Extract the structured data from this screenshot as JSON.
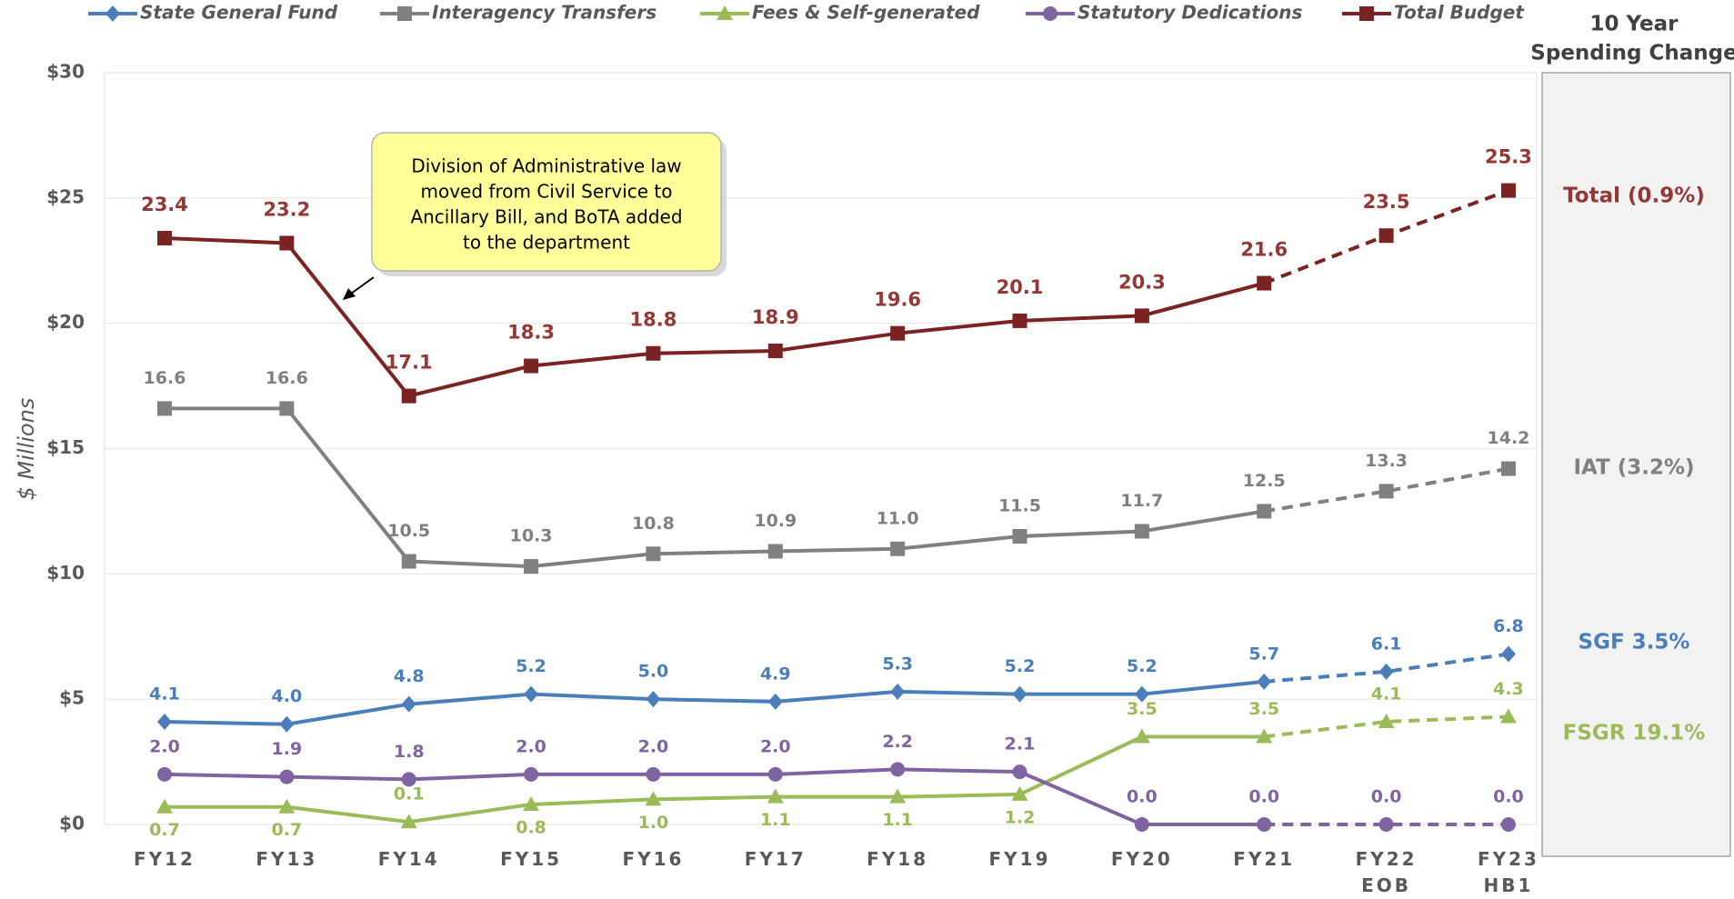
{
  "chart_data": {
    "type": "line",
    "ylabel": "$ Millions",
    "categories": [
      "FY12",
      "FY13",
      "FY14",
      "FY15",
      "FY16",
      "FY17",
      "FY18",
      "FY19",
      "FY20",
      "FY21",
      "FY22\nEOB",
      "FY23\nHB1"
    ],
    "ylim": [
      0,
      30
    ],
    "yticks": [
      {
        "value": 0,
        "label": "$0"
      },
      {
        "value": 5,
        "label": "$5"
      },
      {
        "value": 10,
        "label": "$10"
      },
      {
        "value": 15,
        "label": "$15"
      },
      {
        "value": 20,
        "label": "$20"
      },
      {
        "value": 25,
        "label": "$25"
      },
      {
        "value": 30,
        "label": "$30"
      }
    ],
    "grid": true,
    "legend": "top",
    "dashed_from_category": "FY21",
    "series": [
      {
        "name": "State General Fund",
        "color": "#4a7ebb",
        "marker": "diamond",
        "values": [
          4.1,
          4.0,
          4.8,
          5.2,
          5.0,
          4.9,
          5.3,
          5.2,
          5.2,
          5.7,
          6.1,
          6.8
        ],
        "value_labels": [
          "4.1",
          "4.0",
          "4.8",
          "5.2",
          "5.0",
          "4.9",
          "5.3",
          "5.2",
          "5.2",
          "5.7",
          "6.1",
          "6.8"
        ]
      },
      {
        "name": "Interagency Transfers",
        "color": "#808080",
        "marker": "square",
        "values": [
          16.6,
          16.6,
          10.5,
          10.3,
          10.8,
          10.9,
          11.0,
          11.5,
          11.7,
          12.5,
          13.3,
          14.2
        ],
        "value_labels": [
          "16.6",
          "16.6",
          "10.5",
          "10.3",
          "10.8",
          "10.9",
          "11.0",
          "11.5",
          "11.7",
          "12.5",
          "13.3",
          "14.2"
        ]
      },
      {
        "name": "Fees & Self-generated",
        "color": "#9bbb59",
        "marker": "triangle",
        "values": [
          0.7,
          0.7,
          0.1,
          0.8,
          1.0,
          1.1,
          1.1,
          1.2,
          3.5,
          3.5,
          4.1,
          4.3
        ],
        "value_labels": [
          "0.7",
          "0.7",
          "0.1",
          "0.8",
          "1.0",
          "1.1",
          "1.1",
          "1.2",
          "3.5",
          "3.5",
          "4.1",
          "4.3"
        ]
      },
      {
        "name": "Statutory Dedications",
        "color": "#8064a2",
        "marker": "circle",
        "values": [
          2.0,
          1.9,
          1.8,
          2.0,
          2.0,
          2.0,
          2.2,
          2.1,
          0.0,
          0.0,
          0.0,
          0.0
        ],
        "value_labels": [
          "2.0",
          "1.9",
          "1.8",
          "2.0",
          "2.0",
          "2.0",
          "2.2",
          "2.1",
          "0.0",
          "0.0",
          "0.0",
          "0.0"
        ]
      },
      {
        "name": "Total Budget",
        "color": "#7b2222",
        "label_color": "#953735",
        "marker": "square",
        "values": [
          23.4,
          23.2,
          17.1,
          18.3,
          18.8,
          18.9,
          19.6,
          20.1,
          20.3,
          21.6,
          23.5,
          25.3
        ],
        "value_labels": [
          "23.4",
          "23.2",
          "17.1",
          "18.3",
          "18.8",
          "18.9",
          "19.6",
          "20.1",
          "20.3",
          "21.6",
          "23.5",
          "25.3"
        ]
      }
    ],
    "annotation": [
      "Division of Administrative law",
      "moved from Civil Service to",
      "Ancillary Bill, and BoTA added",
      "to the department"
    ],
    "side_panel": {
      "title": [
        "10 Year",
        "Spending Change"
      ],
      "items": [
        {
          "label": "Total (0.9%)",
          "color": "#953735"
        },
        {
          "label": "IAT (3.2%)",
          "color": "#808080"
        },
        {
          "label": "SGF 3.5%",
          "color": "#4a7ebb"
        },
        {
          "label": "FSGR 19.1%",
          "color": "#9bbb59"
        }
      ]
    }
  }
}
